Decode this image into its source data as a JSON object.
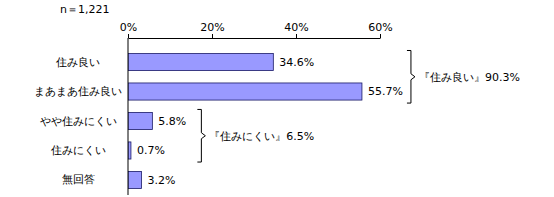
{
  "chart_data": {
    "type": "bar",
    "orientation": "horizontal",
    "title": "n＝1,221",
    "categories": [
      "住み良い",
      "まあまあ住み良い",
      "やや住みにくい",
      "住みにくい",
      "無回答"
    ],
    "values": [
      34.6,
      55.7,
      5.8,
      0.7,
      3.2
    ],
    "value_labels": [
      "34.6%",
      "55.7%",
      "5.8%",
      "0.7%",
      "3.2%"
    ],
    "data_labels": true,
    "color": "#9999ff",
    "xlim": [
      0,
      60
    ],
    "xticks": [
      {
        "value": 0,
        "label": "0%"
      },
      {
        "value": 20,
        "label": "20%"
      },
      {
        "value": 40,
        "label": "40%"
      },
      {
        "value": 60,
        "label": "60%"
      }
    ],
    "grid": false,
    "annotations": [
      {
        "text": "『住み良い』90.3%",
        "categories": [
          "住み良い",
          "まあまあ住み良い"
        ]
      },
      {
        "text": "『住みにくい』6.5%",
        "categories": [
          "やや住みにくい",
          "住みにくい"
        ]
      }
    ]
  }
}
